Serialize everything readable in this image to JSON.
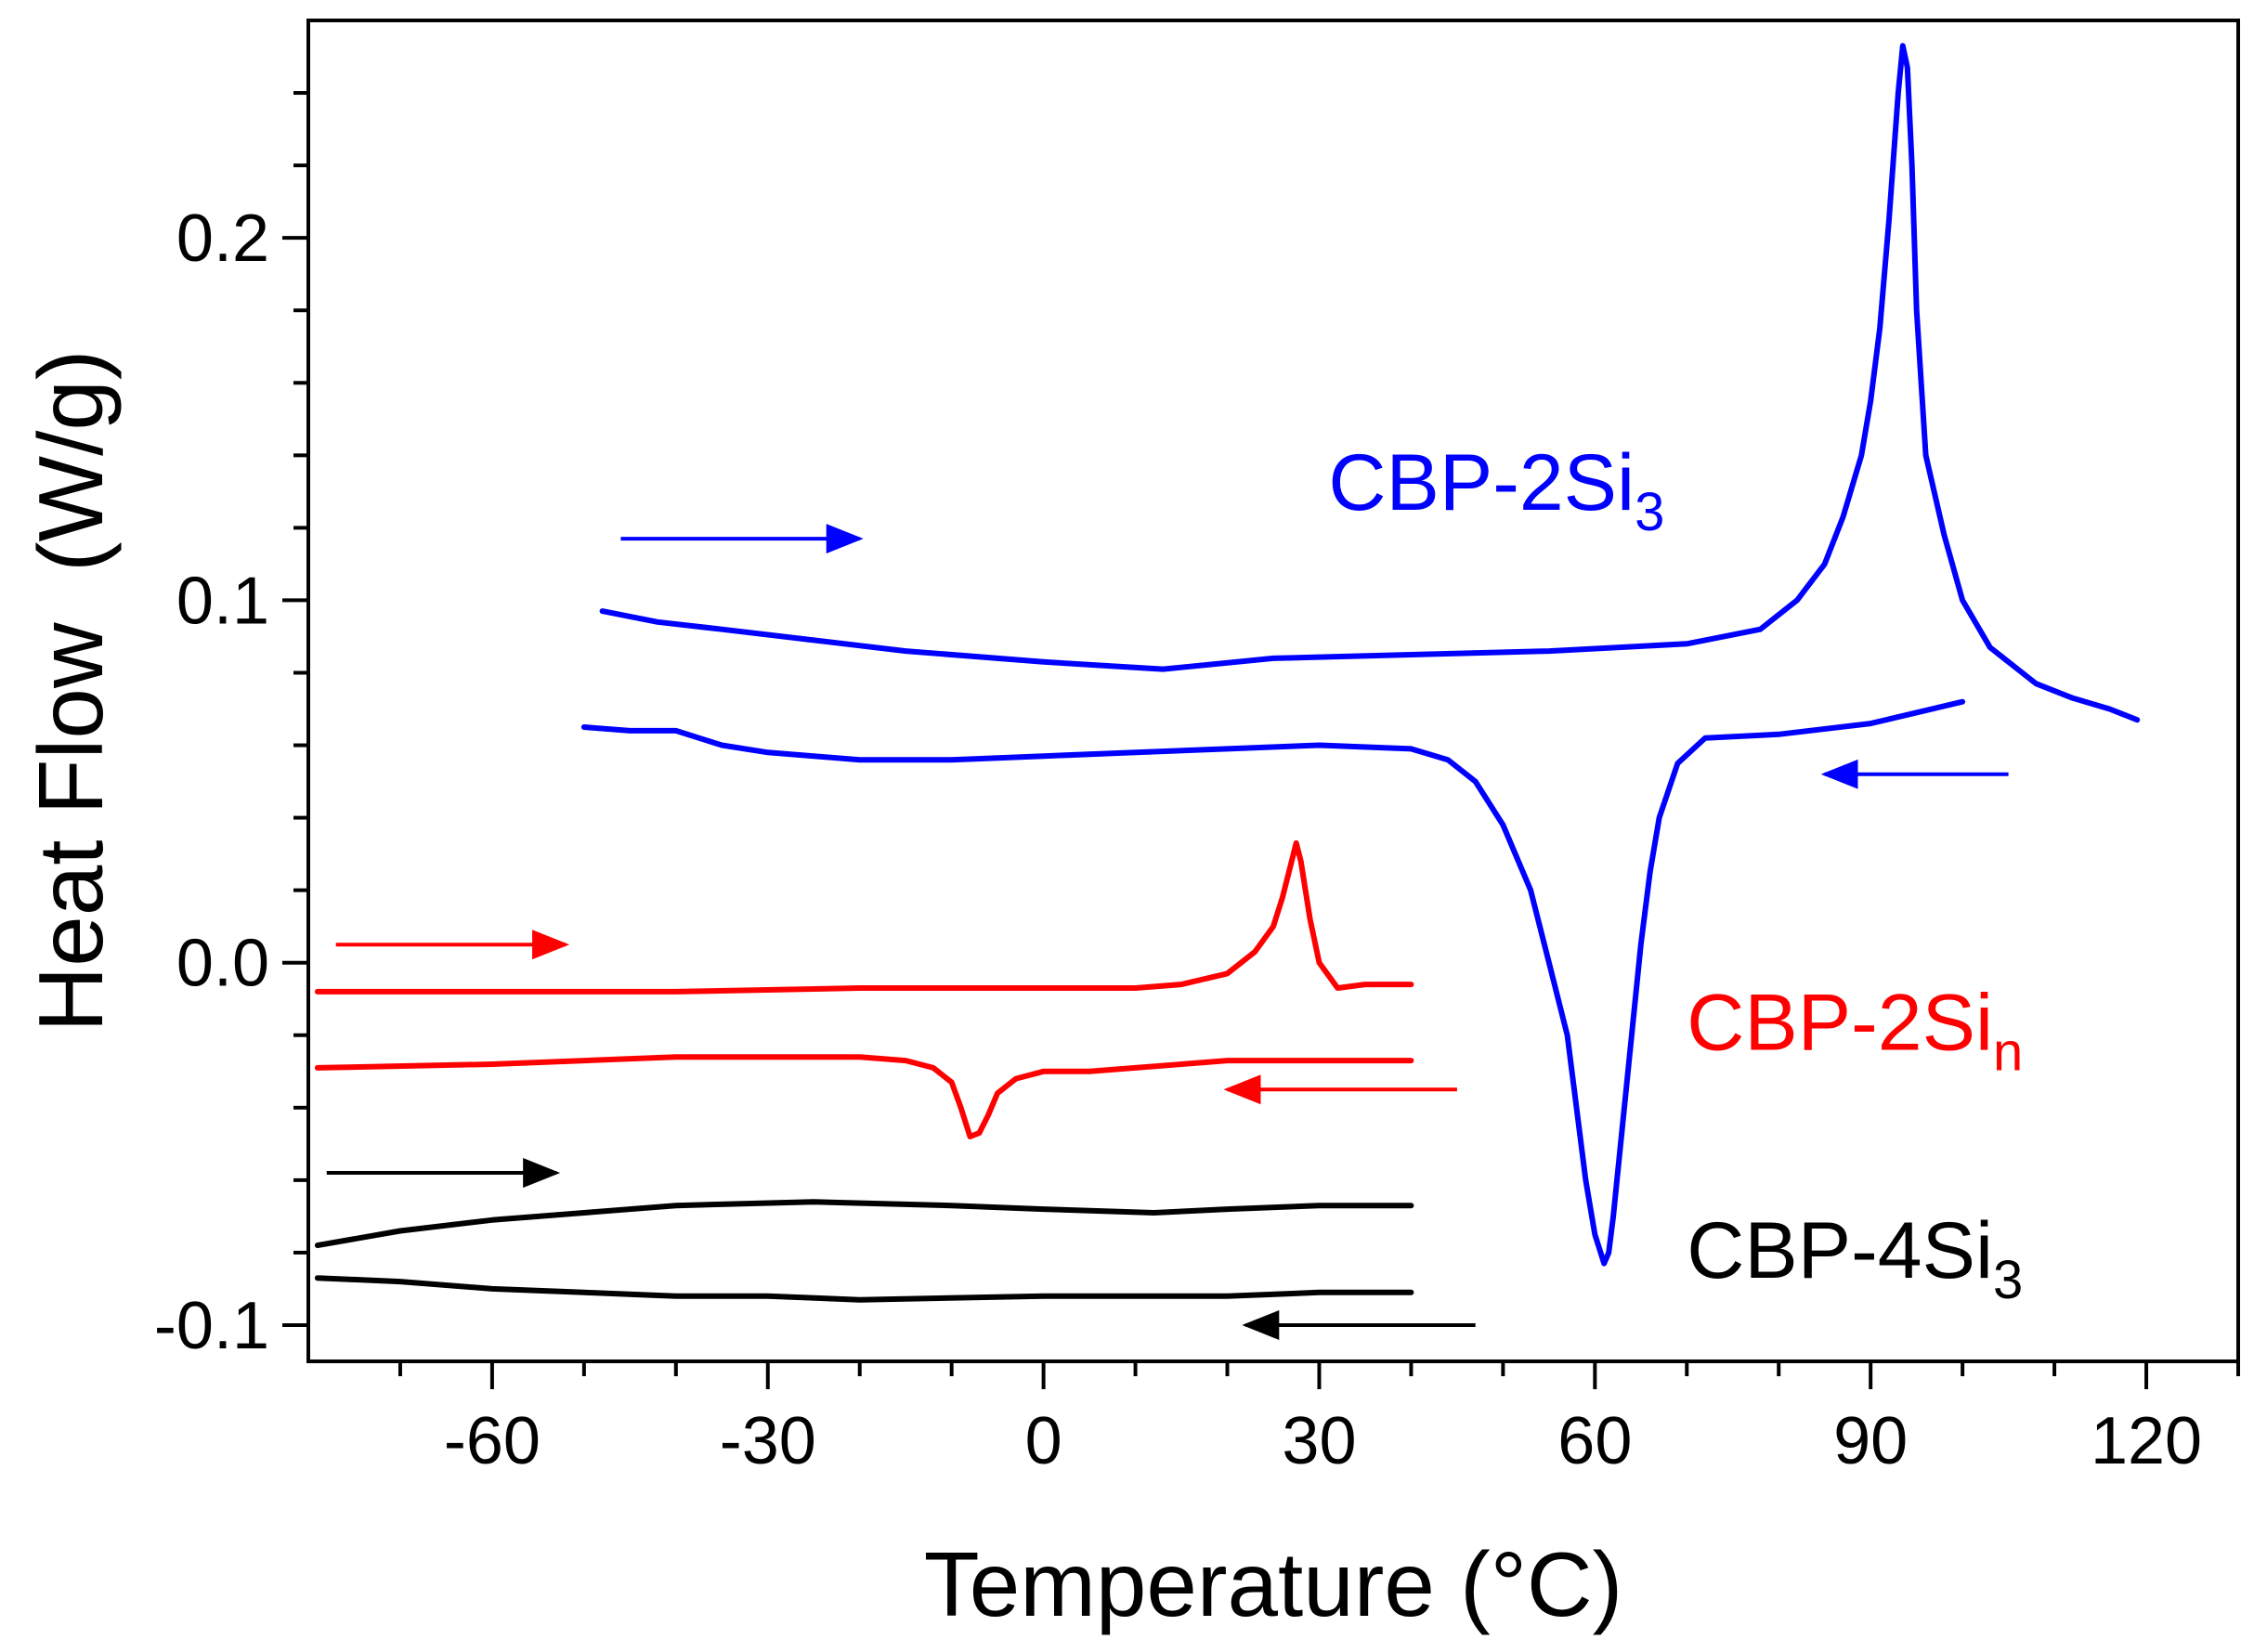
{
  "chart_data": {
    "type": "line",
    "title": "",
    "xlabel": "Temperature (°C)",
    "ylabel": "Heat Flow  (W/g)",
    "xlim": [
      -80,
      130
    ],
    "ylim": [
      -0.11,
      0.26
    ],
    "x_ticks": [
      -60,
      -30,
      0,
      30,
      60,
      90,
      120
    ],
    "x_tick_labels": [
      "-60",
      "-30",
      "0",
      "30",
      "60",
      "90",
      "120"
    ],
    "y_ticks": [
      -0.1,
      0.0,
      0.1,
      0.2
    ],
    "y_tick_labels": [
      "-0.1",
      "0.0",
      "0.1",
      "0.2"
    ],
    "grid": false,
    "series": [
      {
        "name": "CBP-2Si3 heating",
        "color": "#0000ff",
        "x": [
          -48,
          -42,
          -35,
          -25,
          -15,
          0,
          13,
          25,
          40,
          55,
          70,
          78,
          82,
          85,
          87,
          89,
          90,
          91,
          92,
          93,
          93.5,
          94,
          94.5,
          95,
          96,
          98,
          100,
          103,
          108,
          112,
          116,
          119
        ],
        "y": [
          0.097,
          0.094,
          0.092,
          0.089,
          0.086,
          0.083,
          0.081,
          0.084,
          0.085,
          0.086,
          0.088,
          0.092,
          0.1,
          0.11,
          0.123,
          0.14,
          0.155,
          0.175,
          0.205,
          0.24,
          0.253,
          0.247,
          0.22,
          0.18,
          0.14,
          0.118,
          0.1,
          0.087,
          0.077,
          0.073,
          0.07,
          0.067
        ]
      },
      {
        "name": "CBP-2Si3 cooling",
        "color": "#0000ff",
        "x": [
          100,
          90,
          80,
          72,
          69,
          67,
          66,
          65,
          64,
          63,
          62,
          61.5,
          61,
          60,
          59,
          58,
          57,
          55,
          53,
          50,
          47,
          44,
          40,
          30,
          20,
          10,
          0,
          -10,
          -20,
          -30,
          -35,
          -40,
          -45,
          -50
        ],
        "y": [
          0.072,
          0.066,
          0.063,
          0.062,
          0.055,
          0.04,
          0.025,
          0.005,
          -0.02,
          -0.045,
          -0.07,
          -0.08,
          -0.083,
          -0.075,
          -0.06,
          -0.04,
          -0.02,
          0.0,
          0.02,
          0.038,
          0.05,
          0.056,
          0.059,
          0.06,
          0.059,
          0.058,
          0.057,
          0.056,
          0.056,
          0.058,
          0.06,
          0.064,
          0.064,
          0.065
        ]
      },
      {
        "name": "CBP-2Sin heating",
        "color": "#ff0000",
        "x": [
          -79,
          -60,
          -40,
          -20,
          0,
          10,
          15,
          20,
          23,
          25,
          26,
          27,
          27.5,
          28,
          29,
          30,
          32,
          35,
          40
        ],
        "y": [
          -0.008,
          -0.008,
          -0.008,
          -0.007,
          -0.007,
          -0.007,
          -0.006,
          -0.003,
          0.003,
          0.01,
          0.018,
          0.028,
          0.033,
          0.028,
          0.012,
          0.0,
          -0.007,
          -0.006,
          -0.006
        ]
      },
      {
        "name": "CBP-2Sin cooling",
        "color": "#ff0000",
        "x": [
          40,
          30,
          20,
          15,
          10,
          5,
          0,
          -3,
          -5,
          -6,
          -7,
          -8,
          -9,
          -10,
          -12,
          -15,
          -20,
          -40,
          -60,
          -79
        ],
        "y": [
          -0.027,
          -0.027,
          -0.027,
          -0.028,
          -0.029,
          -0.03,
          -0.03,
          -0.032,
          -0.036,
          -0.042,
          -0.047,
          -0.048,
          -0.04,
          -0.033,
          -0.029,
          -0.027,
          -0.026,
          -0.026,
          -0.028,
          -0.029
        ]
      },
      {
        "name": "CBP-4Si3 heating",
        "color": "#000000",
        "x": [
          -79,
          -70,
          -60,
          -50,
          -40,
          -25,
          -10,
          0,
          12,
          20,
          30,
          40
        ],
        "y": [
          -0.078,
          -0.074,
          -0.071,
          -0.069,
          -0.067,
          -0.066,
          -0.067,
          -0.068,
          -0.069,
          -0.068,
          -0.067,
          -0.067
        ]
      },
      {
        "name": "CBP-4Si3 cooling",
        "color": "#000000",
        "x": [
          -79,
          -70,
          -60,
          -50,
          -40,
          -30,
          -20,
          0,
          20,
          30,
          40
        ],
        "y": [
          -0.087,
          -0.088,
          -0.09,
          -0.091,
          -0.092,
          -0.092,
          -0.093,
          -0.092,
          -0.092,
          -0.091,
          -0.091
        ]
      }
    ],
    "annotations": [
      {
        "text": "CBP-2Si",
        "subscript": "3",
        "color": "#0000ff",
        "x": 31,
        "y": 0.125
      },
      {
        "text": "CBP-2Si",
        "subscript": "n",
        "color": "#ff0000",
        "x": 70,
        "y": -0.024
      },
      {
        "text": "CBP-4Si",
        "subscript": "3",
        "color": "#000000",
        "x": 70,
        "y": -0.087
      }
    ],
    "arrows": [
      {
        "color": "#0000ff",
        "x1": -46,
        "x2": -20,
        "y": 0.117
      },
      {
        "color": "#0000ff",
        "x1": 105,
        "x2": 85,
        "y": 0.052
      },
      {
        "color": "#ff0000",
        "x1": -77,
        "x2": -52,
        "y": 0.005
      },
      {
        "color": "#ff0000",
        "x1": 45,
        "x2": 20,
        "y": -0.035
      },
      {
        "color": "#000000",
        "x1": -78,
        "x2": -53,
        "y": -0.058
      },
      {
        "color": "#000000",
        "x1": 47,
        "x2": 22,
        "y": -0.1
      }
    ]
  }
}
